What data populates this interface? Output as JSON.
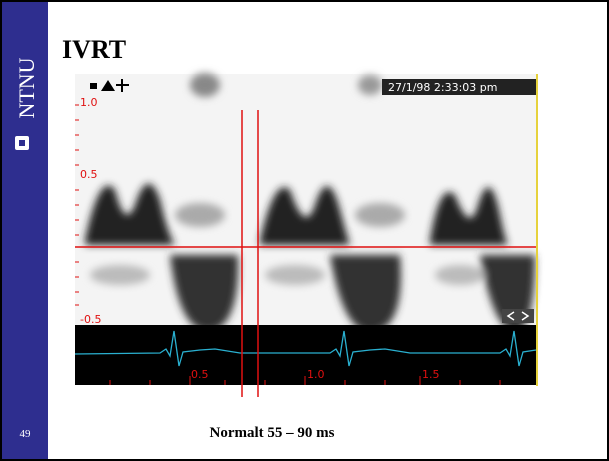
{
  "sidebar": {
    "logo": "NTNU"
  },
  "slide": {
    "title": "IVRT",
    "number": "49",
    "caption": "Normalt 55 – 90 ms"
  },
  "image": {
    "timestamp": "27/1/98 2:33:03 pm",
    "velocity_labels": [
      "1.0",
      "0.5",
      "-0.5"
    ],
    "time_labels": [
      "0.5",
      "1.0",
      "1.5"
    ]
  }
}
